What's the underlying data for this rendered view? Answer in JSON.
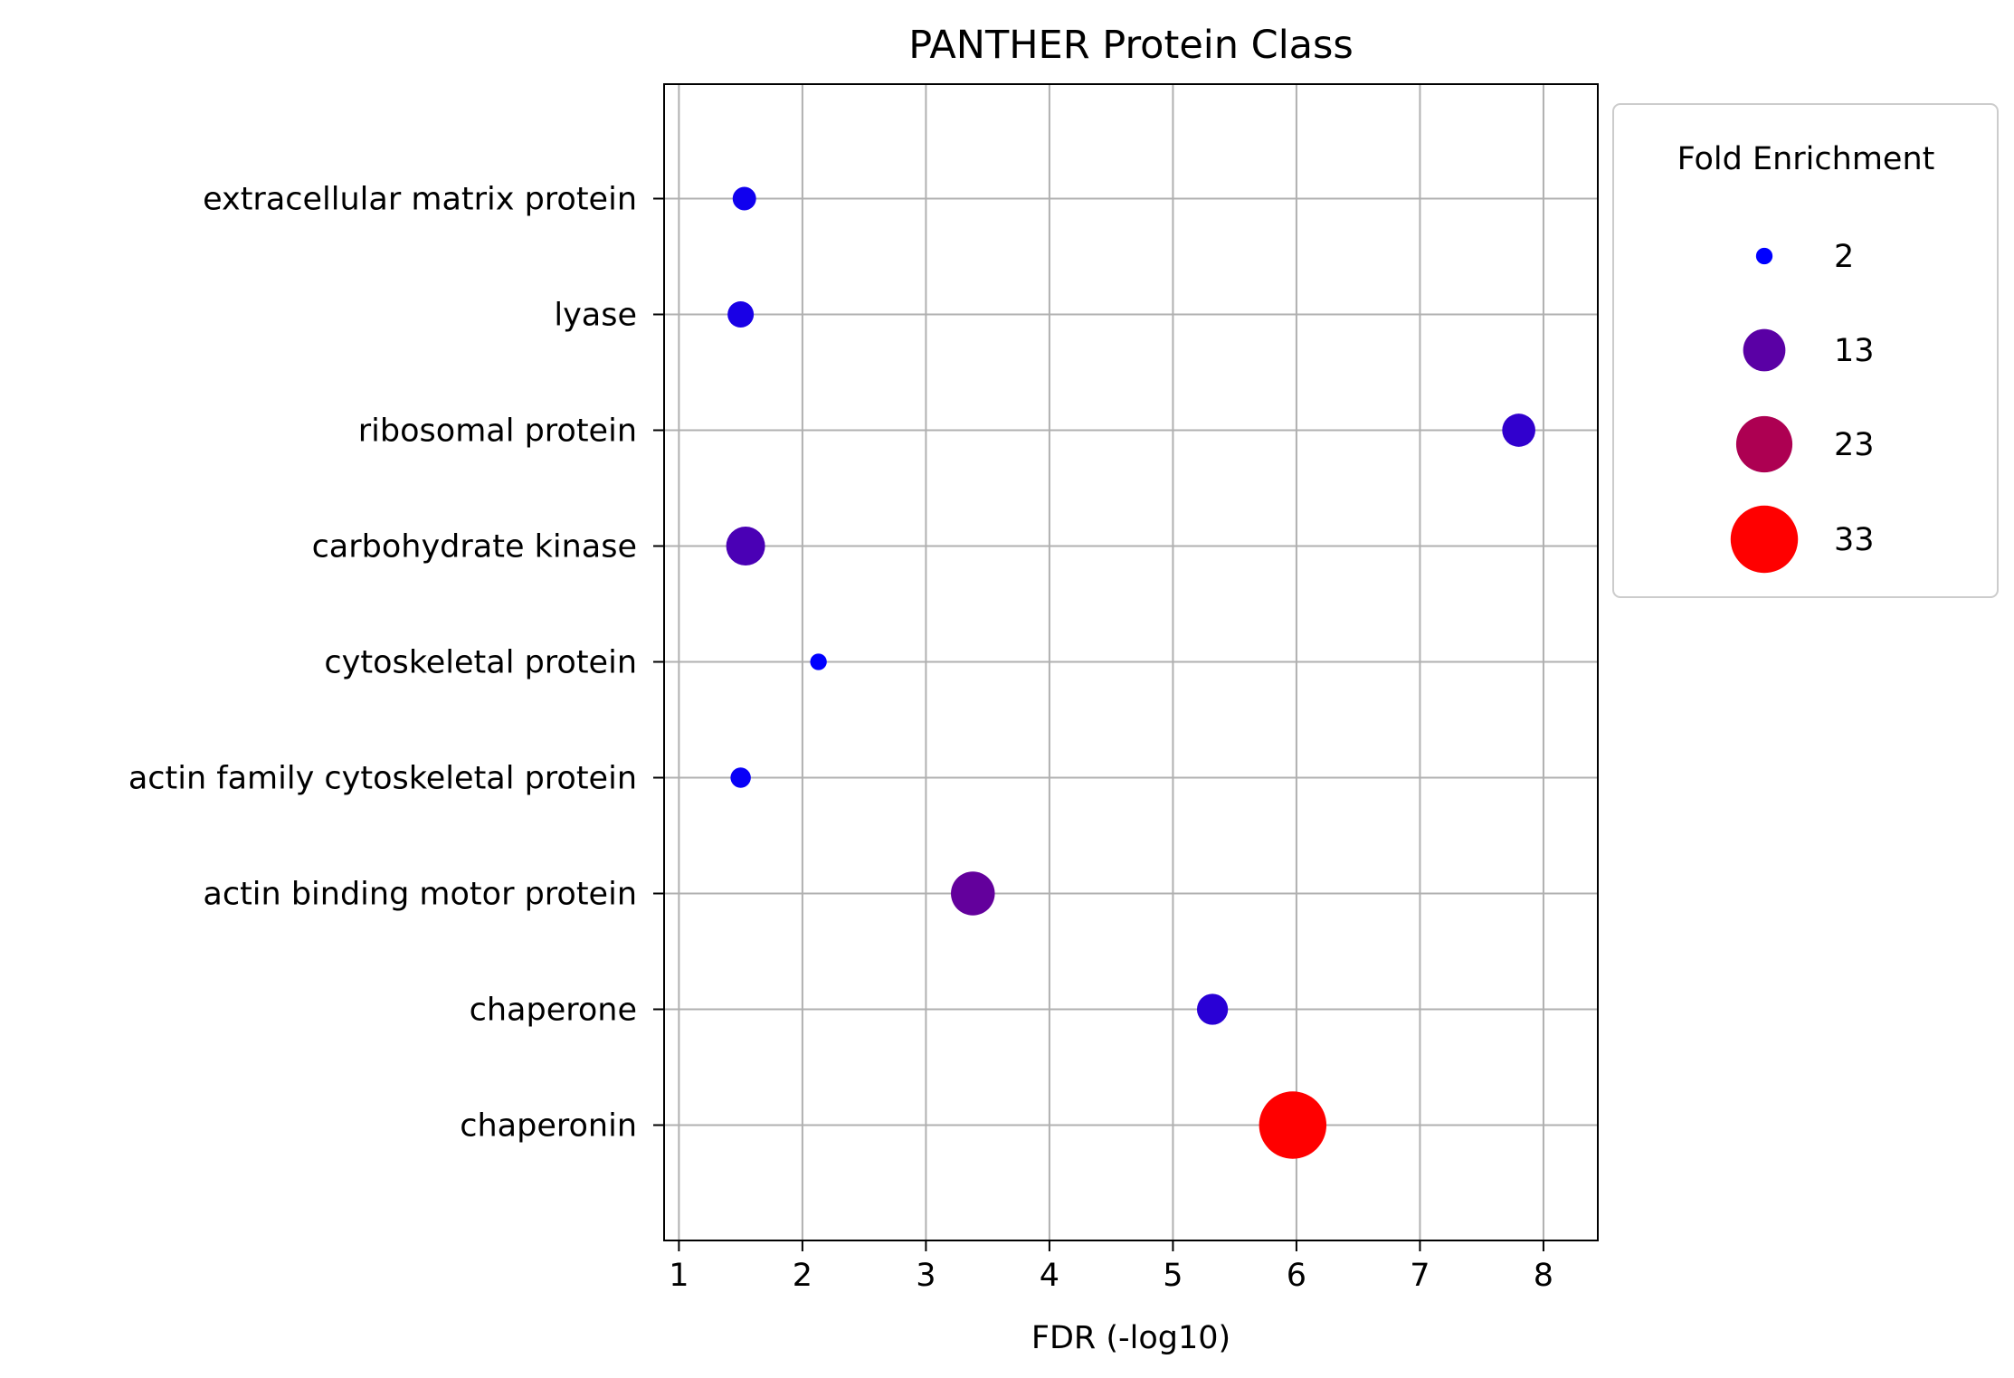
{
  "chart_data": {
    "type": "scatter",
    "title": "PANTHER Protein Class",
    "xlabel": "FDR (-log10)",
    "ylabel": "",
    "xlim": [
      0.88,
      8.44
    ],
    "xticks": [
      1,
      2,
      3,
      4,
      5,
      6,
      7,
      8
    ],
    "grid": true,
    "categories": [
      "chaperonin",
      "chaperone",
      "actin binding motor protein",
      "actin family cytoskeletal protein",
      "cytoskeletal protein",
      "carbohydrate kinase",
      "ribosomal protein",
      "lyase",
      "extracellular matrix protein"
    ],
    "points": [
      {
        "category": "chaperonin",
        "x": 5.97,
        "fold_enrichment": 33
      },
      {
        "category": "chaperone",
        "x": 5.32,
        "fold_enrichment": 7
      },
      {
        "category": "actin binding motor protein",
        "x": 3.38,
        "fold_enrichment": 14
      },
      {
        "category": "actin family cytoskeletal protein",
        "x": 1.5,
        "fold_enrichment": 3
      },
      {
        "category": "cytoskeletal protein",
        "x": 2.13,
        "fold_enrichment": 2
      },
      {
        "category": "carbohydrate kinase",
        "x": 1.54,
        "fold_enrichment": 11
      },
      {
        "category": "ribosomal protein",
        "x": 7.8,
        "fold_enrichment": 8
      },
      {
        "category": "lyase",
        "x": 1.5,
        "fold_enrichment": 5
      },
      {
        "category": "extracellular matrix protein",
        "x": 1.53,
        "fold_enrichment": 4
      }
    ],
    "legend": {
      "title": "Fold Enrichment",
      "placement": "outside-right",
      "entries": [
        {
          "label": "2",
          "value": 2
        },
        {
          "label": "13",
          "value": 13
        },
        {
          "label": "23",
          "value": 23
        },
        {
          "label": "33",
          "value": 33
        }
      ]
    },
    "colors": {
      "low": "#0000ff",
      "high": "#ff0000",
      "grid": "#b0b0b0",
      "frame": "#000000"
    }
  }
}
